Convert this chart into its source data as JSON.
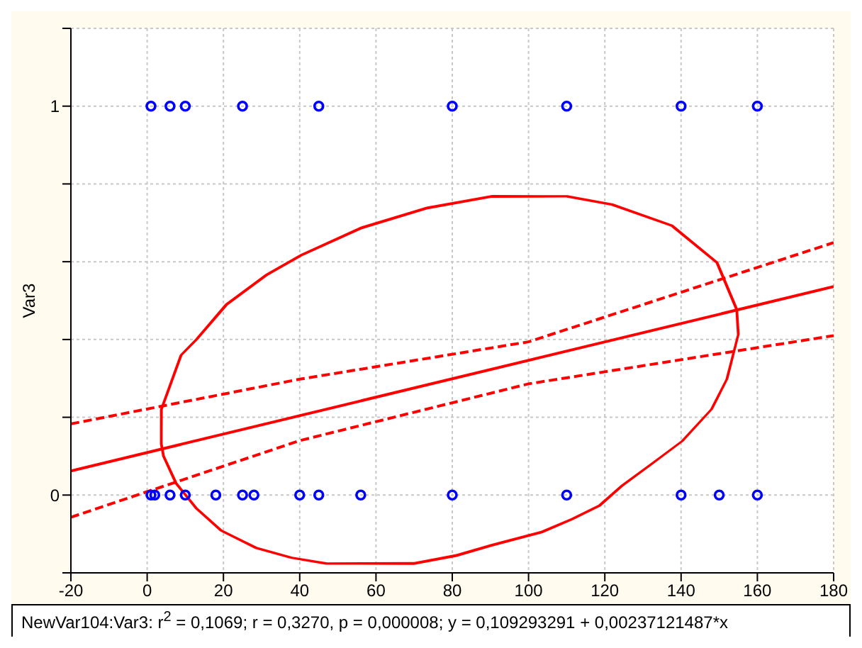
{
  "chart_data": {
    "type": "scatter",
    "ylabel": "Var3",
    "xlim": [
      -20,
      180
    ],
    "xticks": [
      -20,
      0,
      20,
      40,
      60,
      80,
      100,
      120,
      140,
      160,
      180
    ],
    "ylim": [
      -0.2,
      1.2
    ],
    "yticks": [
      {
        "value": -0.2,
        "label": null
      },
      0,
      {
        "value": 0.2,
        "label": null
      },
      {
        "value": 0.4,
        "label": null
      },
      {
        "value": 0.6,
        "label": null
      },
      {
        "value": 0.8,
        "label": null
      },
      1,
      {
        "value": 1.2,
        "label": null
      }
    ],
    "grid": true,
    "annotations": [
      "NewVar104:Var3: r$^{2}$ = 0,1069;  r = 0,3270, p = 0,000008;  y = 0,109293291 + 0,00237121487*x"
    ],
    "series": [
      {
        "color": "#0000ff",
        "marker": "circle",
        "x": [
          1,
          6,
          10,
          25,
          45,
          80,
          110,
          140,
          160,
          1,
          2,
          6,
          10,
          18,
          25,
          28,
          40,
          45,
          56,
          80,
          110,
          140,
          150,
          160
        ],
        "values": [
          1,
          1,
          1,
          1,
          1,
          1,
          1,
          1,
          1,
          0,
          0,
          0,
          0,
          0,
          0,
          0,
          0,
          0,
          0,
          0,
          0,
          0,
          0,
          0
        ]
      },
      {
        "type": "line",
        "color": "#ff0000",
        "marker": "none",
        "line_style": "solid",
        "x": [
          -20,
          180
        ],
        "values": [
          0.062,
          0.536
        ]
      },
      {
        "type": "line",
        "color": "#ff0000",
        "marker": "none",
        "line_style": "dashed",
        "x": [
          -20,
          40,
          100,
          180
        ],
        "values": [
          0.183,
          0.298,
          0.394,
          0.649
        ]
      },
      {
        "type": "line",
        "color": "#ff0000",
        "marker": "none",
        "line_style": "dashed",
        "x": [
          -20,
          40,
          100,
          180
        ],
        "values": [
          -0.057,
          0.14,
          0.286,
          0.41
        ]
      }
    ]
  }
}
